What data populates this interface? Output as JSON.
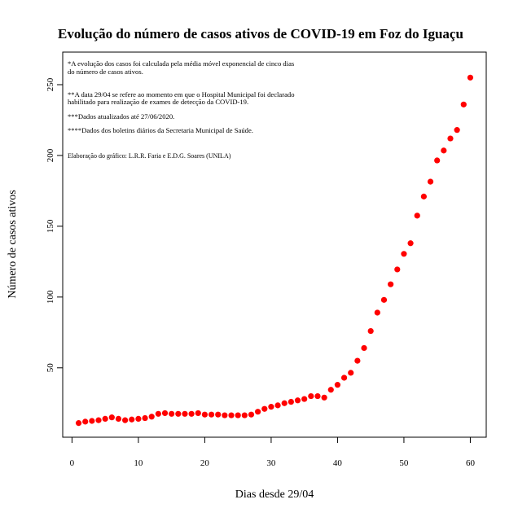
{
  "chart_data": {
    "type": "scatter",
    "title": "Evolução do número de casos ativos de COVID-19 em Foz do Iguaçu",
    "x_label": "Dias desde 29/04",
    "y_label": "Número de casos ativos",
    "annotations": [
      "*A evolução dos casos foi calculada pela média móvel exponencial de cinco dias",
      "do número de casos ativos.",
      "**A data 29/04 se refere ao momento em que o Hospital Municipal foi declarado",
      "habilitado para realização de exames de detecção da COVID-19.",
      "***Dados atualizados até 27/06/2020.",
      "****Dados dos boletins diários da Secretaria Municipal de Saúde."
    ],
    "credit": "Elaboração do gráfico: L.R.R. Faria e E.D.G. Soares (UNILA)",
    "color": "#ff0000",
    "x": [
      1,
      2,
      3,
      4,
      5,
      6,
      7,
      8,
      9,
      10,
      11,
      12,
      13,
      14,
      15,
      16,
      17,
      18,
      19,
      20,
      21,
      22,
      23,
      24,
      25,
      26,
      27,
      28,
      29,
      30,
      31,
      32,
      33,
      34,
      35,
      36,
      37,
      38,
      39,
      40,
      41,
      42,
      43,
      44,
      45,
      46,
      47,
      48,
      49,
      50,
      51,
      52,
      53,
      54,
      55,
      56,
      57,
      58,
      59,
      60
    ],
    "values": [
      11,
      12,
      12.5,
      13,
      14,
      15,
      14,
      13,
      13.5,
      14,
      14.5,
      15.5,
      17.5,
      18,
      17.5,
      17.5,
      17.5,
      17.5,
      18,
      17,
      17,
      17,
      16.5,
      16.5,
      16.5,
      16.5,
      17,
      19,
      21,
      22.5,
      23.5,
      25,
      26,
      27,
      28,
      30,
      30,
      29,
      34.5,
      38,
      43,
      46.5,
      55,
      64,
      76,
      89,
      98,
      109,
      119.5,
      130.5,
      138,
      157.5,
      171,
      181.5,
      196.5,
      203.5,
      212,
      218,
      236,
      255
    ],
    "xlim": [
      -1.4,
      62.4
    ],
    "ylim": [
      1,
      273
    ],
    "xticks": [
      0,
      10,
      20,
      30,
      40,
      50,
      60
    ],
    "yticks": [
      50,
      100,
      150,
      200,
      250
    ]
  }
}
